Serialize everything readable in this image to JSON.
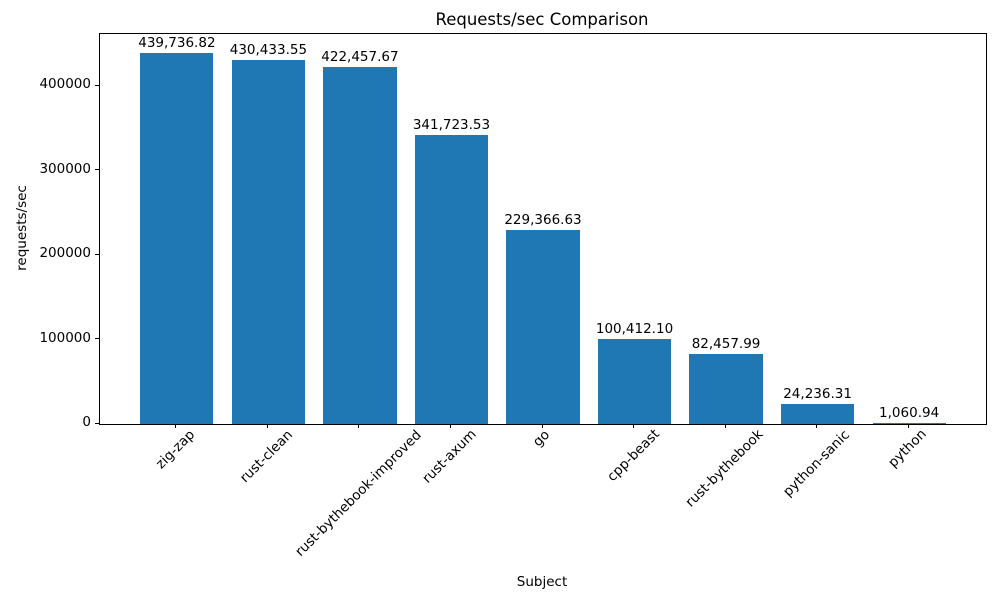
{
  "chart_data": {
    "type": "bar",
    "title": "Requests/sec Comparison",
    "xlabel": "Subject",
    "ylabel": "requests/sec",
    "categories": [
      "zig-zap",
      "rust-clean",
      "rust-bythebook-improved",
      "rust-axum",
      "go",
      "cpp-beast",
      "rust-bythebook",
      "python-sanic",
      "python"
    ],
    "values": [
      439736.82,
      430433.55,
      422457.67,
      341723.53,
      229366.63,
      100412.1,
      82457.99,
      24236.31,
      1060.94
    ],
    "value_labels": [
      "439,736.82",
      "430,433.55",
      "422,457.67",
      "341,723.53",
      "229,366.63",
      "100,412.10",
      "82,457.99",
      "24,236.31",
      "1,060.94"
    ],
    "yticks": [
      0,
      100000,
      200000,
      300000,
      400000
    ],
    "ytick_labels": [
      "0",
      "100000",
      "200000",
      "300000",
      "400000"
    ],
    "ylim": [
      0,
      461723.66
    ],
    "bar_color": "#1f77b4",
    "bar_width_fraction": 0.8,
    "x_tick_rotation_deg": 45,
    "grid": false,
    "legend_position": "none"
  }
}
